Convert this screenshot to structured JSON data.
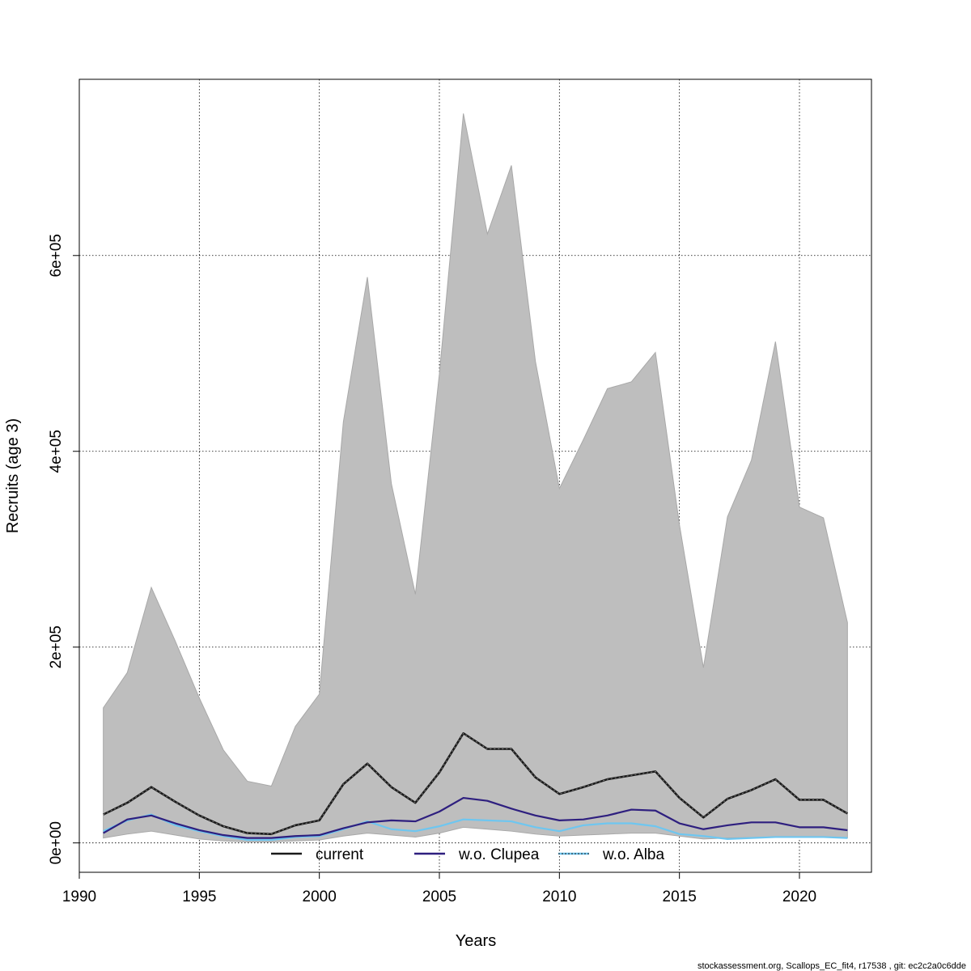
{
  "chart_data": {
    "type": "line",
    "xlabel": "Years",
    "ylabel": "Recruits (age 3)",
    "xlim": [
      1990,
      2023
    ],
    "ylim": [
      -30000,
      780000
    ],
    "x_ticks": [
      1990,
      1995,
      2000,
      2005,
      2010,
      2015,
      2020
    ],
    "y_ticks": [
      0,
      200000,
      400000,
      600000
    ],
    "y_tick_labels": [
      "0e+00",
      "2e+05",
      "4e+05",
      "6e+05"
    ],
    "grid": true,
    "x": [
      1991,
      1992,
      1993,
      1994,
      1995,
      1996,
      1997,
      1998,
      1999,
      2000,
      2001,
      2002,
      2003,
      2004,
      2005,
      2006,
      2007,
      2008,
      2009,
      2010,
      2011,
      2012,
      2013,
      2014,
      2015,
      2016,
      2017,
      2018,
      2019,
      2020,
      2021,
      2022
    ],
    "band": {
      "color": "#bebebe",
      "upper": [
        138000,
        174000,
        261000,
        206000,
        148000,
        95000,
        63000,
        58000,
        119000,
        152000,
        430000,
        578000,
        367000,
        254000,
        479000,
        745000,
        622000,
        692000,
        492000,
        362000,
        412000,
        464000,
        471000,
        501000,
        325000,
        179000,
        333000,
        391000,
        512000,
        343000,
        332000,
        225000
      ],
      "lower": [
        5000,
        9000,
        12000,
        8000,
        4000,
        2000,
        1000,
        1000,
        2000,
        3000,
        7000,
        10000,
        8000,
        6000,
        10000,
        16000,
        14000,
        12000,
        9000,
        7000,
        8000,
        9000,
        10000,
        10000,
        7000,
        4000,
        5000,
        5500,
        6000,
        6000,
        6000,
        5000
      ]
    },
    "series": [
      {
        "name": "current",
        "color": "#1a1a1a",
        "style": "dashed",
        "values": [
          29000,
          41000,
          57000,
          42000,
          28000,
          17000,
          10000,
          9000,
          18000,
          23000,
          60000,
          81000,
          57000,
          41000,
          72000,
          112000,
          96000,
          96000,
          67000,
          50000,
          57000,
          65000,
          69000,
          73000,
          46000,
          26000,
          45000,
          54000,
          65000,
          44000,
          44000,
          30000
        ]
      },
      {
        "name": "w.o. Clupea",
        "color": "#2e1f7f",
        "style": "solid",
        "values": [
          10000,
          24000,
          28000,
          20000,
          13000,
          8000,
          5000,
          5000,
          7000,
          8000,
          15000,
          21000,
          23000,
          22000,
          32000,
          46000,
          43000,
          35000,
          28000,
          23000,
          24000,
          28000,
          34000,
          33000,
          20000,
          14000,
          18000,
          21000,
          21000,
          16000,
          16000,
          13000
        ]
      },
      {
        "name": "w.o. Alba",
        "color": "#6ec6f0",
        "style": "solid",
        "values": [
          12000,
          23000,
          29000,
          18000,
          12000,
          7000,
          3000,
          3000,
          6000,
          7000,
          14000,
          22000,
          14000,
          12000,
          17000,
          24000,
          23000,
          22000,
          16000,
          12000,
          18000,
          20000,
          20000,
          17000,
          9000,
          7000,
          4000,
          5000,
          6000,
          6000,
          6000,
          5000
        ]
      }
    ],
    "legend": [
      "current",
      "w.o. Clupea",
      "w.o. Alba"
    ],
    "legend_position": "bottom-center",
    "footer": "stockassessment.org, Scallops_EC_fit4, r17538 , git: ec2c2a0c6dde"
  }
}
